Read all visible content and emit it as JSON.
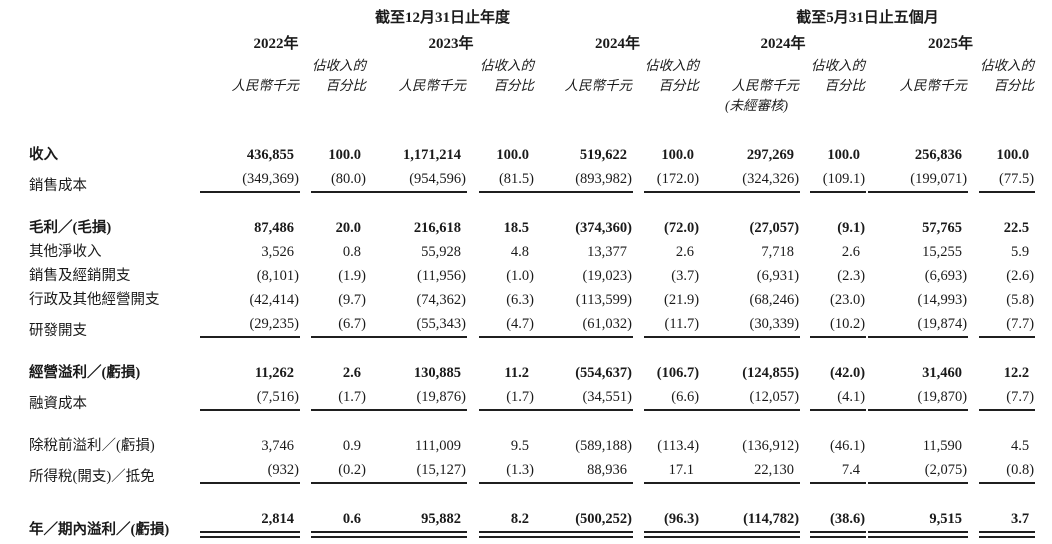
{
  "colors": {
    "text": "#1a1a1a",
    "background": "#ffffff",
    "rule": "#1f1f1f"
  },
  "table": {
    "period_groups": [
      {
        "label": "截至12月31日止年度"
      },
      {
        "label": "截至5月31日止五個月"
      }
    ],
    "years": [
      "2022年",
      "2023年",
      "2024年",
      "2024年",
      "2025年"
    ],
    "unit_rmb": "人民幣千元",
    "unit_pct_line1": "佔收入的",
    "unit_pct_line2": "百分比",
    "unaudited_note": "(未經審核)",
    "rows": [
      {
        "label": "收入",
        "bold": true,
        "gap_before": false,
        "rule": "none",
        "values": [
          "436,855",
          "100.0",
          "1,171,214",
          "100.0",
          "519,622",
          "100.0",
          "297,269",
          "100.0",
          "256,836",
          "100.0"
        ]
      },
      {
        "label": "銷售成本",
        "bold": false,
        "gap_before": false,
        "rule": "single",
        "values": [
          "(349,369)",
          "(80.0)",
          "(954,596)",
          "(81.5)",
          "(893,982)",
          "(172.0)",
          "(324,326)",
          "(109.1)",
          "(199,071)",
          "(77.5)"
        ]
      },
      {
        "label": "毛利／(毛損)",
        "bold": true,
        "gap_before": true,
        "rule": "none",
        "values": [
          "87,486",
          "20.0",
          "216,618",
          "18.5",
          "(374,360)",
          "(72.0)",
          "(27,057)",
          "(9.1)",
          "57,765",
          "22.5"
        ]
      },
      {
        "label": "其他淨收入",
        "bold": false,
        "gap_before": false,
        "rule": "none",
        "values": [
          "3,526",
          "0.8",
          "55,928",
          "4.8",
          "13,377",
          "2.6",
          "7,718",
          "2.6",
          "15,255",
          "5.9"
        ]
      },
      {
        "label": "銷售及經銷開支",
        "bold": false,
        "gap_before": false,
        "rule": "none",
        "values": [
          "(8,101)",
          "(1.9)",
          "(11,956)",
          "(1.0)",
          "(19,023)",
          "(3.7)",
          "(6,931)",
          "(2.3)",
          "(6,693)",
          "(2.6)"
        ]
      },
      {
        "label": "行政及其他經營開支",
        "bold": false,
        "gap_before": false,
        "rule": "none",
        "values": [
          "(42,414)",
          "(9.7)",
          "(74,362)",
          "(6.3)",
          "(113,599)",
          "(21.9)",
          "(68,246)",
          "(23.0)",
          "(14,993)",
          "(5.8)"
        ]
      },
      {
        "label": "研發開支",
        "bold": false,
        "gap_before": false,
        "rule": "single",
        "values": [
          "(29,235)",
          "(6.7)",
          "(55,343)",
          "(4.7)",
          "(61,032)",
          "(11.7)",
          "(30,339)",
          "(10.2)",
          "(19,874)",
          "(7.7)"
        ]
      },
      {
        "label": "經營溢利／(虧損)",
        "bold": true,
        "gap_before": true,
        "rule": "none",
        "values": [
          "11,262",
          "2.6",
          "130,885",
          "11.2",
          "(554,637)",
          "(106.7)",
          "(124,855)",
          "(42.0)",
          "31,460",
          "12.2"
        ]
      },
      {
        "label": "融資成本",
        "bold": false,
        "gap_before": false,
        "rule": "single",
        "values": [
          "(7,516)",
          "(1.7)",
          "(19,876)",
          "(1.7)",
          "(34,551)",
          "(6.6)",
          "(12,057)",
          "(4.1)",
          "(19,870)",
          "(7.7)"
        ]
      },
      {
        "label": "除稅前溢利／(虧損)",
        "bold": false,
        "gap_before": true,
        "rule": "none",
        "values": [
          "3,746",
          "0.9",
          "111,009",
          "9.5",
          "(589,188)",
          "(113.4)",
          "(136,912)",
          "(46.1)",
          "11,590",
          "4.5"
        ]
      },
      {
        "label": "所得稅(開支)／抵免",
        "bold": false,
        "gap_before": false,
        "rule": "single",
        "values": [
          "(932)",
          "(0.2)",
          "(15,127)",
          "(1.3)",
          "88,936",
          "17.1",
          "22,130",
          "7.4",
          "(2,075)",
          "(0.8)"
        ]
      },
      {
        "label": "年／期內溢利／(虧損)",
        "bold": true,
        "gap_before": true,
        "rule": "double",
        "values": [
          "2,814",
          "0.6",
          "95,882",
          "8.2",
          "(500,252)",
          "(96.3)",
          "(114,782)",
          "(38.6)",
          "9,515",
          "3.7"
        ]
      }
    ]
  }
}
